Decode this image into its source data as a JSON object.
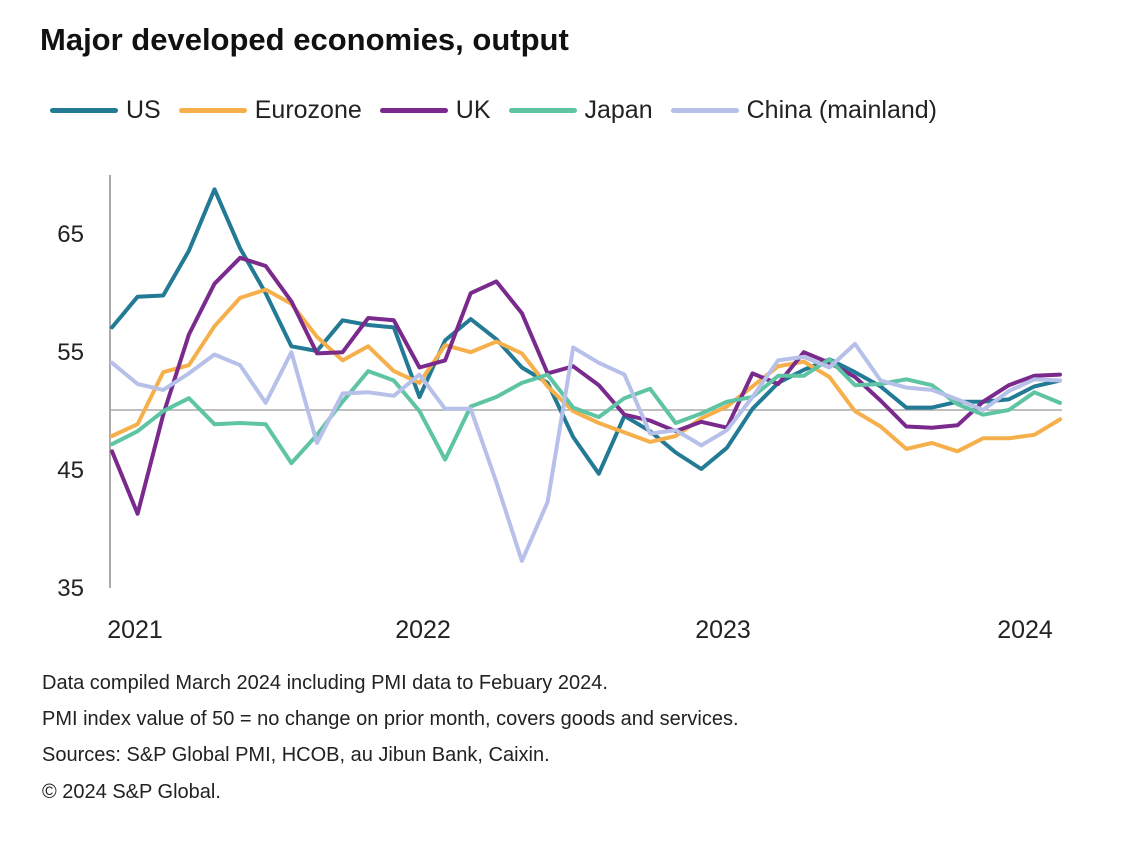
{
  "chart_data": {
    "type": "line",
    "title": "Major developed economies, output",
    "xlabel": "",
    "ylabel": "",
    "ylim": [
      35,
      70
    ],
    "yticks": [
      35,
      45,
      55,
      65
    ],
    "xticks": [
      "2021",
      "2022",
      "2023",
      "2024"
    ],
    "x_range": "Jan 2021 - Feb 2024 (monthly)",
    "reference_line": 50,
    "legend_position": "top",
    "series": [
      {
        "name": "US",
        "color": "#237a94",
        "values": [
          57.0,
          59.6,
          59.7,
          63.5,
          68.7,
          63.7,
          59.9,
          55.4,
          55.0,
          57.6,
          57.2,
          57.0,
          51.1,
          55.9,
          57.7,
          56.0,
          53.6,
          52.3,
          47.7,
          44.6,
          49.5,
          48.2,
          46.4,
          45.0,
          46.8,
          50.1,
          52.3,
          53.4,
          54.3,
          53.2,
          52.0,
          50.2,
          50.2,
          50.7,
          50.7,
          50.9,
          52.0,
          52.5
        ]
      },
      {
        "name": "Eurozone",
        "color": "#f5b04b",
        "values": [
          47.8,
          48.8,
          53.2,
          53.8,
          57.1,
          59.5,
          60.2,
          59.0,
          56.2,
          54.2,
          55.4,
          53.3,
          52.3,
          55.5,
          54.9,
          55.8,
          54.8,
          52.0,
          49.9,
          48.9,
          48.1,
          47.3,
          47.8,
          49.3,
          50.3,
          52.0,
          53.7,
          54.1,
          52.8,
          49.9,
          48.6,
          46.7,
          47.2,
          46.5,
          47.6,
          47.6,
          47.9,
          49.2
        ]
      },
      {
        "name": "UK",
        "color": "#7a2a8d",
        "values": [
          46.5,
          41.2,
          49.6,
          56.4,
          60.7,
          62.9,
          62.2,
          59.2,
          54.8,
          54.9,
          57.8,
          57.6,
          53.6,
          54.2,
          59.9,
          60.9,
          58.2,
          53.1,
          53.7,
          52.1,
          49.6,
          49.1,
          48.2,
          49.0,
          48.5,
          53.1,
          52.2,
          54.9,
          54.0,
          52.8,
          50.8,
          48.6,
          48.5,
          48.7,
          50.7,
          52.1,
          52.9,
          53.0
        ]
      },
      {
        "name": "Japan",
        "color": "#5ec4a3",
        "values": [
          47.1,
          48.2,
          49.9,
          51.0,
          48.8,
          48.9,
          48.8,
          45.5,
          47.9,
          50.7,
          53.3,
          52.5,
          49.9,
          45.8,
          50.3,
          51.1,
          52.3,
          53.0,
          50.2,
          49.4,
          51.0,
          51.8,
          48.9,
          49.7,
          50.7,
          51.1,
          52.9,
          52.9,
          54.3,
          52.1,
          52.2,
          52.6,
          52.1,
          50.5,
          49.6,
          50.0,
          51.5,
          50.6
        ]
      },
      {
        "name": "China (mainland)",
        "color": "#b7c0e9",
        "values": [
          54.0,
          52.2,
          51.7,
          53.1,
          54.7,
          53.8,
          50.6,
          54.9,
          47.2,
          51.4,
          51.5,
          51.2,
          53.0,
          50.1,
          50.1,
          43.9,
          37.2,
          42.2,
          55.3,
          54.0,
          53.0,
          48.0,
          48.3,
          47.0,
          48.3,
          51.1,
          54.2,
          54.5,
          53.6,
          55.6,
          52.5,
          51.9,
          51.7,
          50.9,
          50.0,
          51.6,
          52.6,
          52.5
        ]
      }
    ]
  },
  "notes": [
    "Data compiled March 2024 including PMI data to Febuary 2024.",
    "PMI index value of 50 = no change on prior month, covers goods and services.",
    "Sources: S&P Global PMI, HCOB, au Jibun Bank, Caixin.",
    "© 2024 S&P Global."
  ]
}
